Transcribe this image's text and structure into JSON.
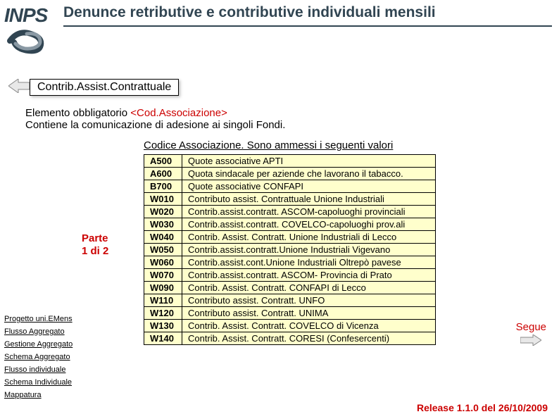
{
  "logo_text": "INPS",
  "title": "Denunce retributive e contributive individuali mensili",
  "tag_label": "Contrib.Assist.Contrattuale",
  "desc_line1_plain": "Elemento obbligatorio ",
  "desc_line1_tag": "<Cod.Associazione>",
  "desc_line2": "Contiene la comunicazione di adesione ai singoli Fondi.",
  "table_title": "Codice Associazione. Sono ammessi i seguenti valori",
  "part_label_1": "Parte",
  "part_label_2": "1 di 2",
  "codes": [
    {
      "code": "A500",
      "desc": "Quote associative APTI"
    },
    {
      "code": "A600",
      "desc": "Quota sindacale per aziende che lavorano il tabacco."
    },
    {
      "code": "B700",
      "desc": "Quote associative CONFAPI"
    },
    {
      "code": "W010",
      "desc": "Contributo assist. Contrattuale Unione Industriali"
    },
    {
      "code": "W020",
      "desc": "Contrib.assist.contratt. ASCOM-capoluoghi provinciali"
    },
    {
      "code": "W030",
      "desc": "Contrib.assist.contratt. COVELCO-capoluoghi prov.ali"
    },
    {
      "code": "W040",
      "desc": "Contrib. Assist. Contratt. Unione Industriali di Lecco"
    },
    {
      "code": "W050",
      "desc": "Contrib.assist.contratt.Unione Industriali Vigevano"
    },
    {
      "code": "W060",
      "desc": "Contrib.assist.cont.Unione Industriali Oltrepò pavese"
    },
    {
      "code": "W070",
      "desc": "Contrib.assist.contratt. ASCOM- Provincia di Prato"
    },
    {
      "code": "W090",
      "desc": "Contrib. Assist. Contratt. CONFAPI di Lecco"
    },
    {
      "code": "W110",
      "desc": "Contributo assist. Contratt.  UNFO"
    },
    {
      "code": "W120",
      "desc": "Contributo assist. Contratt. UNIMA"
    },
    {
      "code": "W130",
      "desc": "Contrib. Assist. Contratt. COVELCO di Vicenza"
    },
    {
      "code": "W140",
      "desc": "Contrib. Assist. Contratt. CORESI (Confesercenti)"
    }
  ],
  "sidebar": [
    "Progetto uni.EMens",
    "Flusso Aggregato",
    "Gestione Aggregato",
    "Schema Aggregato",
    "Flusso individuale",
    "Schema Individuale",
    "Mappatura"
  ],
  "segue_text": "Segue",
  "release_text": "Release 1.1.0 del 26/10/2009",
  "colors": {
    "bg": "#ffffff",
    "table_bg": "#ffffcc",
    "brand": "#314552",
    "red": "#cc0000"
  }
}
